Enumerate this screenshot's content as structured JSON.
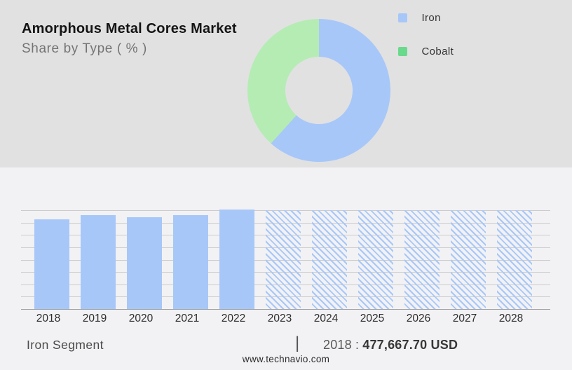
{
  "header": {
    "title": "Amorphous Metal Cores Market",
    "subtitle": "Share by Type ( % )"
  },
  "legend": {
    "items": [
      {
        "label": "Iron",
        "color": "#a7c7f9"
      },
      {
        "label": "Cobalt",
        "color": "#69da8c"
      }
    ]
  },
  "footer": {
    "segment_label": "Iron Segment",
    "separator": "|",
    "year_label": "2018 :",
    "value_label": "477,667.70 USD",
    "website": "www.technavio.com"
  },
  "colors": {
    "header_bg": "#e1e1e2",
    "body_bg": "#f2f2f4",
    "bar_blue": "#a7c7f9",
    "donut_green": "#b5ecb4",
    "legend_green": "#69da8c",
    "grid_line": "#cbcbcb",
    "axis_line": "#a2a2a2"
  },
  "chart_data": [
    {
      "type": "pie",
      "subtype": "donut",
      "title": "Share by Type ( % )",
      "labels": [
        "Iron",
        "Cobalt"
      ],
      "values_pct": [
        61.7,
        38.3
      ],
      "colors": [
        "#a7c7f9",
        "#b5ecb4"
      ],
      "legend_position": "right",
      "start_angle_deg": 0,
      "direction": "clockwise"
    },
    {
      "type": "bar",
      "categories": [
        "2018",
        "2019",
        "2020",
        "2021",
        "2022",
        "2023",
        "2024",
        "2025",
        "2026",
        "2027",
        "2028"
      ],
      "values_pct_of_axis_max": [
        90.8,
        95.0,
        92.9,
        95.0,
        100.5,
        100,
        100,
        100,
        100,
        100,
        100
      ],
      "hatched_years": [
        "2023",
        "2024",
        "2025",
        "2026",
        "2027",
        "2028"
      ],
      "anchor_label": {
        "year": "2018",
        "value": "477,667.70 USD"
      },
      "bar_color": "#a7c7f9",
      "gridline_count": 9,
      "grid": "horizontal",
      "xlabel": "",
      "ylabel": "",
      "y_axis_labels_shown": false
    }
  ]
}
